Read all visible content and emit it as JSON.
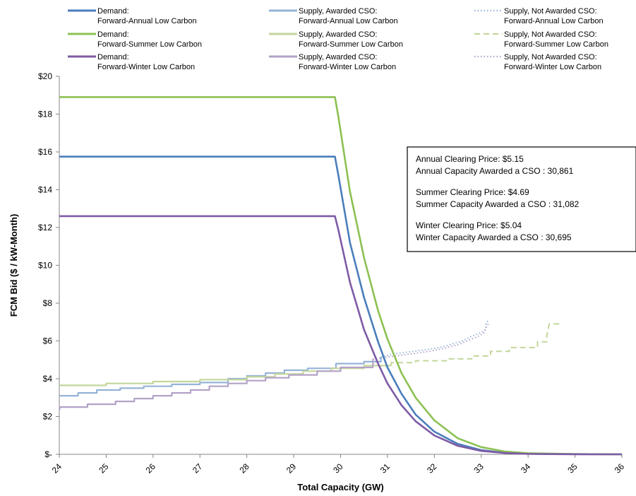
{
  "chart_data": {
    "type": "line",
    "xlabel": "Total Capacity (GW)",
    "ylabel": "FCM Bid ($ / kW-Month)",
    "xlim": [
      24,
      36
    ],
    "ylim": [
      0,
      20
    ],
    "x_ticks": [
      "24",
      "25",
      "26",
      "27",
      "28",
      "29",
      "30",
      "31",
      "32",
      "33",
      "34",
      "35",
      "36"
    ],
    "y_ticks": [
      "$-",
      "$2",
      "$4",
      "$6",
      "$8",
      "$10",
      "$12",
      "$14",
      "$16",
      "$18",
      "$20"
    ],
    "grid": false,
    "legend_position": "top",
    "series": [
      {
        "name": "Demand:\nForward-Annual Low Carbon",
        "color": "#4a7ebb",
        "style": "solid",
        "points": [
          [
            24,
            15.75
          ],
          [
            29.88,
            15.75
          ],
          [
            29.95,
            14.8
          ],
          [
            30.2,
            11.2
          ],
          [
            30.5,
            8.3
          ],
          [
            30.8,
            5.95
          ],
          [
            31.0,
            4.6
          ],
          [
            31.3,
            3.2
          ],
          [
            31.6,
            2.1
          ],
          [
            32.0,
            1.2
          ],
          [
            32.5,
            0.55
          ],
          [
            33.0,
            0.22
          ],
          [
            33.5,
            0.08
          ],
          [
            34.0,
            0.03
          ],
          [
            35.0,
            0.01
          ],
          [
            36,
            0.0
          ]
        ]
      },
      {
        "name": "Supply, Awarded CSO:\nForward-Annual Low Carbon",
        "color": "#95b3d7",
        "style": "solid",
        "points": [
          [
            24,
            3.1
          ],
          [
            24.4,
            3.1
          ],
          [
            24.4,
            3.25
          ],
          [
            24.8,
            3.25
          ],
          [
            24.8,
            3.4
          ],
          [
            25.3,
            3.4
          ],
          [
            25.3,
            3.5
          ],
          [
            25.8,
            3.5
          ],
          [
            25.8,
            3.6
          ],
          [
            26.4,
            3.6
          ],
          [
            26.4,
            3.7
          ],
          [
            27.0,
            3.7
          ],
          [
            27.0,
            3.8
          ],
          [
            27.6,
            3.8
          ],
          [
            27.6,
            4.0
          ],
          [
            28.0,
            4.0
          ],
          [
            28.0,
            4.15
          ],
          [
            28.4,
            4.15
          ],
          [
            28.4,
            4.3
          ],
          [
            28.8,
            4.3
          ],
          [
            28.8,
            4.45
          ],
          [
            29.3,
            4.45
          ],
          [
            29.3,
            4.55
          ],
          [
            29.9,
            4.55
          ],
          [
            29.9,
            4.8
          ],
          [
            30.5,
            4.8
          ],
          [
            30.5,
            4.9
          ],
          [
            30.86,
            4.9
          ],
          [
            30.86,
            5.15
          ]
        ]
      },
      {
        "name": "Supply, Not Awarded CSO:\nForward-Annual Low Carbon",
        "color": "#95b3d7",
        "style": "dotted",
        "points": [
          [
            30.86,
            5.15
          ],
          [
            31.1,
            5.3
          ],
          [
            31.4,
            5.4
          ],
          [
            31.7,
            5.5
          ],
          [
            32.0,
            5.6
          ],
          [
            32.2,
            5.7
          ],
          [
            32.4,
            5.85
          ],
          [
            32.6,
            6.0
          ],
          [
            32.75,
            6.2
          ],
          [
            32.9,
            6.35
          ],
          [
            33.0,
            6.45
          ],
          [
            33.1,
            6.6
          ],
          [
            33.1,
            6.9
          ],
          [
            33.15,
            7.1
          ]
        ]
      },
      {
        "name": "Demand:\nForward-Summer Low Carbon",
        "color": "#8cc152",
        "style": "solid",
        "points": [
          [
            24,
            18.9
          ],
          [
            29.88,
            18.9
          ],
          [
            29.95,
            17.9
          ],
          [
            30.2,
            13.9
          ],
          [
            30.5,
            10.4
          ],
          [
            30.8,
            7.6
          ],
          [
            31.0,
            6.1
          ],
          [
            31.3,
            4.3
          ],
          [
            31.6,
            3.0
          ],
          [
            32.0,
            1.8
          ],
          [
            32.5,
            0.85
          ],
          [
            33.0,
            0.38
          ],
          [
            33.5,
            0.15
          ],
          [
            34.0,
            0.06
          ],
          [
            35.0,
            0.01
          ],
          [
            36,
            0.0
          ]
        ]
      },
      {
        "name": "Supply, Awarded CSO:\nForward-Summer Low Carbon",
        "color": "#c3d69b",
        "style": "solid",
        "points": [
          [
            24,
            3.65
          ],
          [
            25.0,
            3.65
          ],
          [
            25.0,
            3.75
          ],
          [
            26.0,
            3.75
          ],
          [
            26.0,
            3.85
          ],
          [
            27.0,
            3.85
          ],
          [
            27.0,
            3.95
          ],
          [
            28.0,
            3.95
          ],
          [
            28.0,
            4.1
          ],
          [
            28.6,
            4.1
          ],
          [
            28.6,
            4.25
          ],
          [
            29.2,
            4.25
          ],
          [
            29.2,
            4.4
          ],
          [
            29.8,
            4.4
          ],
          [
            29.8,
            4.55
          ],
          [
            30.5,
            4.55
          ],
          [
            30.5,
            4.69
          ],
          [
            31.08,
            4.69
          ]
        ]
      },
      {
        "name": "Supply, Not Awarded CSO:\nForward-Summer Low Carbon",
        "color": "#c3d69b",
        "style": "dashed",
        "points": [
          [
            31.08,
            4.69
          ],
          [
            31.08,
            4.85
          ],
          [
            31.6,
            4.85
          ],
          [
            31.6,
            4.95
          ],
          [
            32.3,
            4.95
          ],
          [
            32.3,
            5.05
          ],
          [
            32.8,
            5.05
          ],
          [
            32.8,
            5.2
          ],
          [
            33.2,
            5.2
          ],
          [
            33.2,
            5.45
          ],
          [
            33.6,
            5.45
          ],
          [
            33.6,
            5.65
          ],
          [
            34.2,
            5.65
          ],
          [
            34.2,
            5.95
          ],
          [
            34.4,
            5.95
          ],
          [
            34.4,
            6.3
          ],
          [
            34.45,
            6.9
          ],
          [
            34.7,
            6.9
          ]
        ]
      },
      {
        "name": "Demand:\nForward-Winter Low Carbon",
        "color": "#7e5ba6",
        "style": "solid",
        "points": [
          [
            24,
            12.6
          ],
          [
            29.88,
            12.6
          ],
          [
            29.95,
            11.9
          ],
          [
            30.2,
            9.1
          ],
          [
            30.5,
            6.6
          ],
          [
            30.8,
            4.8
          ],
          [
            31.0,
            3.75
          ],
          [
            31.3,
            2.6
          ],
          [
            31.6,
            1.75
          ],
          [
            32.0,
            1.0
          ],
          [
            32.5,
            0.45
          ],
          [
            33.0,
            0.18
          ],
          [
            33.5,
            0.07
          ],
          [
            34.0,
            0.02
          ],
          [
            35.0,
            0.005
          ],
          [
            36,
            0.0
          ]
        ]
      },
      {
        "name": "Supply, Awarded CSO:\nForward-Winter Low Carbon",
        "color": "#b3a2c7",
        "style": "solid",
        "points": [
          [
            24,
            2.35
          ],
          [
            24.02,
            2.5
          ],
          [
            24.6,
            2.5
          ],
          [
            24.6,
            2.65
          ],
          [
            25.2,
            2.65
          ],
          [
            25.2,
            2.8
          ],
          [
            25.6,
            2.8
          ],
          [
            25.6,
            2.95
          ],
          [
            26.0,
            2.95
          ],
          [
            26.0,
            3.1
          ],
          [
            26.4,
            3.1
          ],
          [
            26.4,
            3.25
          ],
          [
            26.8,
            3.25
          ],
          [
            26.8,
            3.4
          ],
          [
            27.2,
            3.4
          ],
          [
            27.2,
            3.6
          ],
          [
            27.6,
            3.6
          ],
          [
            27.6,
            3.75
          ],
          [
            28.0,
            3.75
          ],
          [
            28.0,
            3.9
          ],
          [
            28.4,
            3.9
          ],
          [
            28.4,
            4.05
          ],
          [
            28.9,
            4.05
          ],
          [
            28.9,
            4.2
          ],
          [
            29.5,
            4.2
          ],
          [
            29.5,
            4.4
          ],
          [
            30.0,
            4.4
          ],
          [
            30.0,
            4.6
          ],
          [
            30.69,
            4.6
          ],
          [
            30.69,
            5.04
          ]
        ]
      },
      {
        "name": "Supply, Not Awarded CSO:\nForward-Winter Low Carbon",
        "color": "#b3a2c7",
        "style": "dotted",
        "points": [
          [
            30.69,
            5.04
          ],
          [
            31.0,
            5.15
          ],
          [
            31.3,
            5.25
          ],
          [
            31.6,
            5.35
          ],
          [
            31.9,
            5.45
          ],
          [
            32.2,
            5.6
          ],
          [
            32.5,
            5.8
          ],
          [
            32.7,
            6.0
          ],
          [
            32.9,
            6.2
          ],
          [
            33.05,
            6.4
          ],
          [
            33.1,
            6.7
          ],
          [
            33.15,
            6.9
          ]
        ]
      }
    ]
  },
  "info_box": {
    "lines": [
      "Annual Clearing Price: $5.15",
      "Annual Capacity Awarded a CSO : 30,861",
      "",
      "Summer Clearing Price: $4.69",
      "Summer Capacity Awarded a CSO : 31,082",
      "",
      "Winter Clearing Price: $5.04",
      "Winter Capacity Awarded a CSO : 30,695"
    ]
  }
}
